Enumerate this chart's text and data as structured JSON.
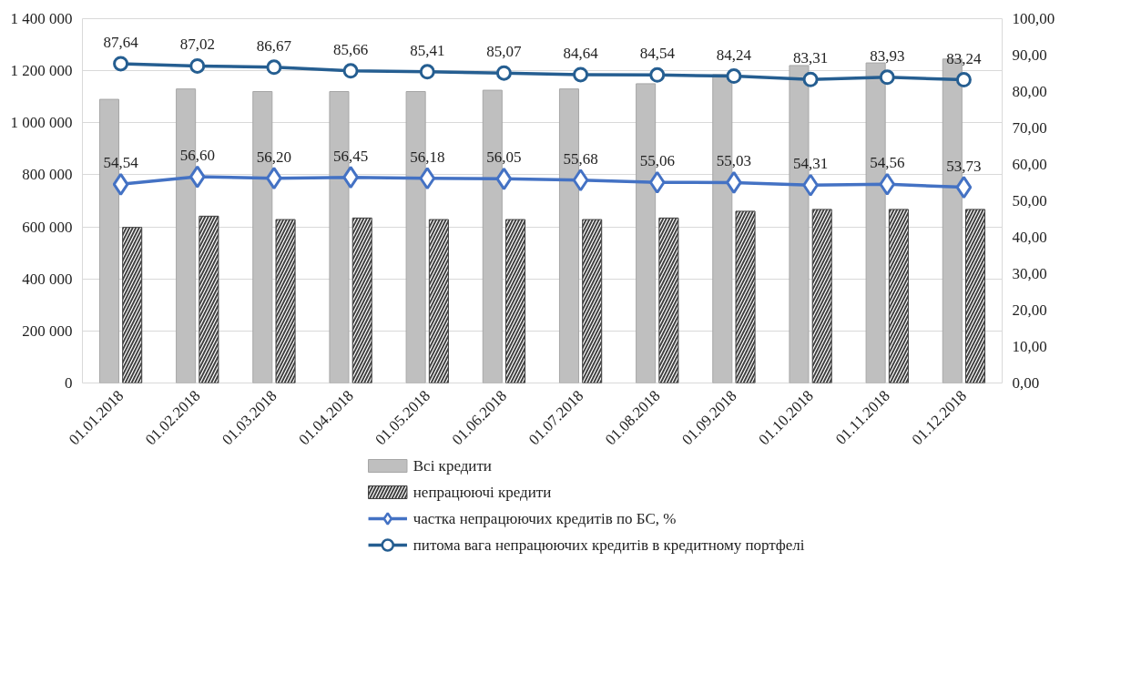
{
  "chart_data": {
    "type": "bar",
    "categories": [
      "01.01.2018",
      "01.02.2018",
      "01.03.2018",
      "01.04.2018",
      "01.05.2018",
      "01.06.2018",
      "01.07.2018",
      "01.08.2018",
      "01.09.2018",
      "01.10.2018",
      "01.11.2018",
      "01.12.2018"
    ],
    "series": [
      {
        "name": "Всі кредити",
        "color": "#bfbfbf",
        "values": [
          1090000,
          1130000,
          1120000,
          1120000,
          1120000,
          1125000,
          1130000,
          1150000,
          1185000,
          1220000,
          1230000,
          1245000
        ]
      },
      {
        "name": "непрацюючі кредити",
        "color": "#404040",
        "values": [
          598000,
          641000,
          628000,
          634000,
          628000,
          628000,
          628000,
          634000,
          660000,
          667000,
          667000,
          667000
        ]
      },
      {
        "name": "частка непрацюючих кредитів по БС, %",
        "type": "line",
        "axis": "y2",
        "marker": "diamond",
        "color": "#4472c4",
        "values": [
          54.54,
          56.6,
          56.2,
          56.45,
          56.18,
          56.05,
          55.68,
          55.06,
          55.03,
          54.31,
          54.56,
          53.73
        ],
        "value_labels": [
          "54,54",
          "56,60",
          "56,20",
          "56,45",
          "56,18",
          "56,05",
          "55,68",
          "55,06",
          "55,03",
          "54,31",
          "54,56",
          "53,73"
        ]
      },
      {
        "name": "питома вага непрацюючих кредитів в кредитному портфелі",
        "type": "line",
        "axis": "y2",
        "marker": "circle",
        "color": "#255e91",
        "values": [
          87.64,
          87.02,
          86.67,
          85.66,
          85.41,
          85.07,
          84.64,
          84.54,
          84.24,
          83.31,
          83.93,
          83.24
        ],
        "value_labels": [
          "87,64",
          "87,02",
          "86,67",
          "85,66",
          "85,41",
          "85,07",
          "84,64",
          "84,54",
          "84,24",
          "83,31",
          "83,93",
          "83,24"
        ]
      }
    ],
    "ylim": [
      0,
      1400000
    ],
    "yticks": [
      0,
      {
        "value": 200000,
        "label": "200 000"
      },
      {
        "value": 400000,
        "label": "400 000"
      },
      {
        "value": 600000,
        "label": "600 000"
      },
      {
        "value": 800000,
        "label": "800 000"
      },
      {
        "value": 1000000,
        "label": "1 000 000"
      },
      {
        "value": 1200000,
        "label": "1 200 000"
      },
      {
        "value": 1400000,
        "label": "1 400 000"
      }
    ],
    "y2lim": [
      0,
      100
    ],
    "y2ticks": [
      {
        "value": 0,
        "label": "0,00"
      },
      {
        "value": 10,
        "label": "10,00"
      },
      {
        "value": 20,
        "label": "20,00"
      },
      {
        "value": 30,
        "label": "30,00"
      },
      {
        "value": 40,
        "label": "40,00"
      },
      {
        "value": 50,
        "label": "50,00"
      },
      {
        "value": 60,
        "label": "60,00"
      },
      {
        "value": 70,
        "label": "70,00"
      },
      {
        "value": 80,
        "label": "80,00"
      },
      {
        "value": 90,
        "label": "90,00"
      },
      {
        "value": 100,
        "label": "100,00"
      }
    ],
    "grid": "y",
    "legend": "bottom",
    "line_style": "solid"
  }
}
